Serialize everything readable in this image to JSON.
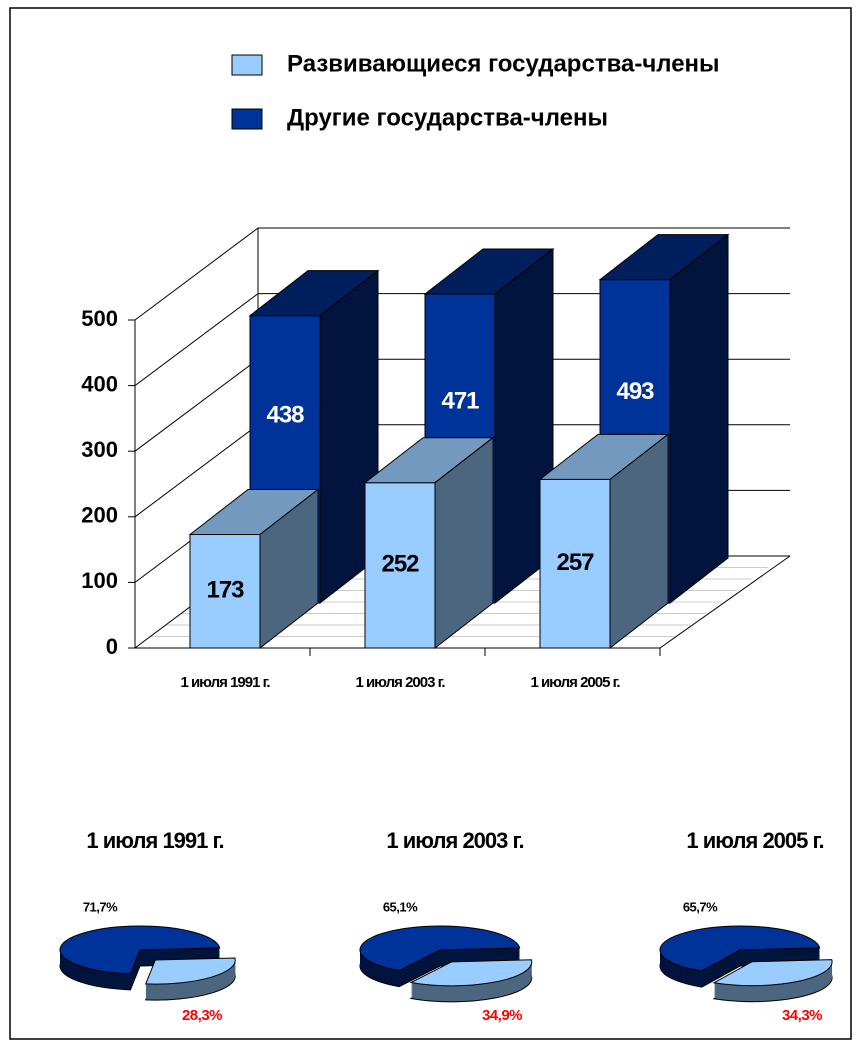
{
  "chart_data": [
    {
      "type": "bar3d",
      "categories": [
        "1 июля 1991 г.",
        "1 июля 2003 г.",
        "1 июля 2005 г."
      ],
      "series": [
        {
          "name": "Развивающиеся государства-члены",
          "color": "#99ccff",
          "values": [
            173,
            252,
            257
          ]
        },
        {
          "name": "Другие государства-члены",
          "color": "#003399",
          "values": [
            438,
            471,
            493
          ]
        }
      ],
      "ylim": [
        0,
        500
      ],
      "yticks": [
        0,
        100,
        200,
        300,
        400,
        500
      ],
      "grid": true
    },
    {
      "type": "pie",
      "title": "1 июля 1991 г.",
      "values": [
        71.7,
        28.3
      ],
      "value_labels": [
        "71,7%",
        "28,3%"
      ],
      "colors": [
        "#003399",
        "#99ccff"
      ]
    },
    {
      "type": "pie",
      "title": "1 июля 2003 г.",
      "values": [
        65.1,
        34.9
      ],
      "value_labels": [
        "65,1%",
        "34,9%"
      ],
      "colors": [
        "#003399",
        "#99ccff"
      ]
    },
    {
      "type": "pie",
      "title": "1 июля 2005 г.",
      "values": [
        65.7,
        34.3
      ],
      "value_labels": [
        "65,7%",
        "34,3%"
      ],
      "colors": [
        "#003399",
        "#99ccff"
      ]
    }
  ]
}
